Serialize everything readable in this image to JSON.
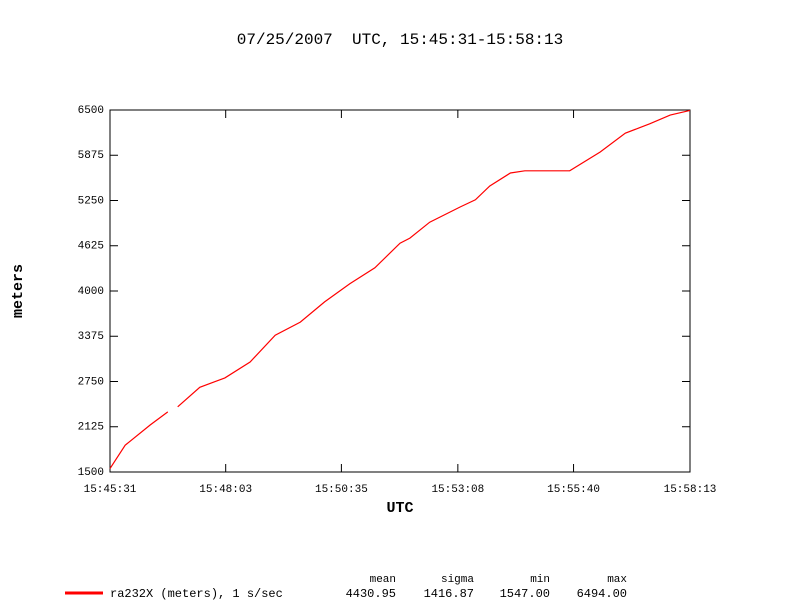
{
  "chart_data": {
    "type": "line",
    "title": "07/25/2007  UTC, 15:45:31-15:58:13",
    "xlabel": "UTC",
    "ylabel": "meters",
    "x": [
      "15:45:31",
      "15:45:51",
      "15:46:24",
      "15:46:47",
      "15:46:53",
      "15:47:00",
      "15:47:29",
      "15:48:02",
      "15:48:35",
      "15:49:08",
      "15:49:41",
      "15:50:13",
      "15:50:46",
      "15:51:19",
      "15:51:52",
      "15:52:05",
      "15:52:31",
      "15:53:11",
      "15:53:31",
      "15:53:50",
      "15:54:17",
      "15:54:36",
      "15:55:35",
      "15:56:15",
      "15:56:48",
      "15:57:20",
      "15:57:47",
      "15:58:13"
    ],
    "series": [
      {
        "name": "ra232X (meters), 1 s/sec",
        "color": "#ff0000",
        "values": [
          1547,
          1870,
          2150,
          2330,
          null,
          2400,
          2670,
          2800,
          3020,
          3390,
          3570,
          3850,
          4100,
          4320,
          4660,
          4730,
          4950,
          5160,
          5260,
          5450,
          5630,
          5660,
          5660,
          5920,
          6180,
          6310,
          6430,
          6494
        ]
      }
    ],
    "xlim": [
      "15:45:31",
      "15:58:13"
    ],
    "xticks": [
      "15:45:31",
      "15:48:03",
      "15:50:35",
      "15:53:08",
      "15:55:40",
      "15:58:13"
    ],
    "ylim": [
      1500,
      6500
    ],
    "yticks": [
      1500,
      2125,
      2750,
      3375,
      4000,
      4625,
      5250,
      5875,
      6500
    ],
    "stats": {
      "headers": [
        "mean",
        "sigma",
        "min",
        "max"
      ],
      "values": [
        "4430.95",
        "1416.87",
        "1547.00",
        "6494.00"
      ]
    }
  }
}
